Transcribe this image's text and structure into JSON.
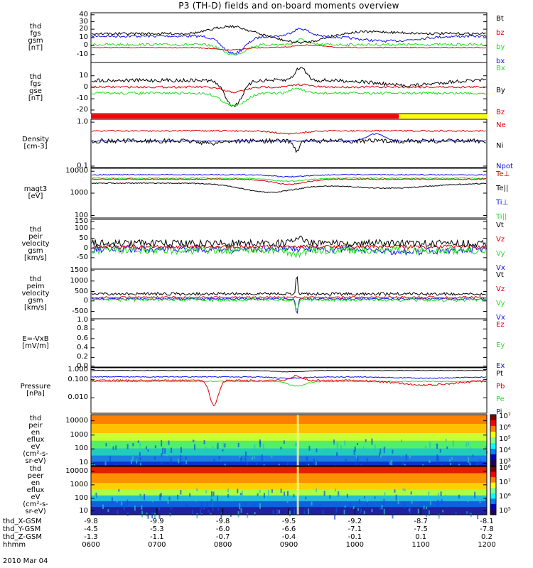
{
  "title": "P3 (TH-D) fields and on-board moments overview",
  "date": "2010 Mar 04",
  "colors": {
    "black": "#000000",
    "red": "#dd0000",
    "green": "#22dd22",
    "blue": "#1010ee",
    "yellow": "#ffff00"
  },
  "chart_data": [
    {
      "type": "line",
      "id": "fgs1",
      "ylabel": [
        "thd",
        "fgs",
        "gsm",
        "[nT]"
      ],
      "ylim": [
        -10,
        40
      ],
      "yticks": [
        "40",
        "30",
        "20",
        "10",
        "0",
        "-10"
      ],
      "legend": [
        {
          "name": "Bt",
          "color": "#000000"
        },
        {
          "name": "bz",
          "color": "#dd0000"
        },
        {
          "name": "by",
          "color": "#22dd22"
        },
        {
          "name": "bx",
          "color": "#1010ee"
        }
      ]
    },
    {
      "type": "line",
      "id": "fgs2",
      "ylabel": [
        "thd",
        "fgs",
        "gse",
        "[nT]"
      ],
      "ylim": [
        -25,
        18
      ],
      "yticks": [
        "10",
        "0",
        "-10",
        "-20"
      ],
      "legend": [
        {
          "name": "Bx",
          "color": "#22dd22"
        },
        {
          "name": "By",
          "color": "#000000"
        },
        {
          "name": "Bz",
          "color": "#dd0000"
        }
      ]
    },
    {
      "type": "bar",
      "id": "mode_bar",
      "segments": [
        {
          "from": "0600",
          "to": "1040",
          "color": "#ff0000"
        },
        {
          "from": "1040",
          "to": "1200",
          "color": "#ffff00"
        }
      ]
    },
    {
      "type": "line",
      "id": "density",
      "ylabel": [
        "Density",
        "[cm-3]"
      ],
      "scale": "log",
      "ylim": [
        0.1,
        1.0
      ],
      "yticks": [
        "1.0",
        "0.1"
      ],
      "legend": [
        {
          "name": "Ne",
          "color": "#dd0000"
        },
        {
          "name": "Ni",
          "color": "#000000"
        },
        {
          "name": "Npot",
          "color": "#1010ee"
        }
      ]
    },
    {
      "type": "line",
      "id": "temp",
      "ylabel": [
        "magt3",
        "[eV]"
      ],
      "scale": "log",
      "ylim": [
        100,
        10000
      ],
      "yticks": [
        "10000",
        "1000",
        "100"
      ],
      "legend": [
        {
          "name": "Te⊥",
          "color": "#dd0000"
        },
        {
          "name": "Te||",
          "color": "#000000"
        },
        {
          "name": "Ti⊥",
          "color": "#1010ee"
        },
        {
          "name": "Ti||",
          "color": "#22dd22"
        }
      ]
    },
    {
      "type": "line",
      "id": "peir_vel",
      "ylabel": [
        "thd",
        "peir",
        "velocity",
        "gsm",
        "[km/s]"
      ],
      "ylim": [
        -60,
        150
      ],
      "yticks": [
        "150",
        "100",
        "50",
        "0",
        "-50"
      ],
      "legend": [
        {
          "name": "Vt",
          "color": "#000000"
        },
        {
          "name": "Vz",
          "color": "#dd0000"
        },
        {
          "name": "Vy",
          "color": "#22dd22"
        },
        {
          "name": "Vx",
          "color": "#1010ee"
        }
      ]
    },
    {
      "type": "line",
      "id": "peim_vel",
      "ylabel": [
        "thd",
        "peim",
        "velocity",
        "gsm",
        "[km/s]"
      ],
      "ylim": [
        -800,
        1500
      ],
      "yticks": [
        "1500",
        "1000",
        "500",
        "0",
        "-500"
      ],
      "legend": [
        {
          "name": "Vt",
          "color": "#000000"
        },
        {
          "name": "Vz",
          "color": "#dd0000"
        },
        {
          "name": "Vy",
          "color": "#22dd22"
        },
        {
          "name": "Vx",
          "color": "#1010ee"
        }
      ]
    },
    {
      "type": "line",
      "id": "efield",
      "ylabel": [
        "E=-VxB",
        "[mV/m]"
      ],
      "ylim": [
        0,
        1.0
      ],
      "yticks": [
        "1.0",
        "0.8",
        "0.6",
        "0.4",
        "0.2",
        "0.0"
      ],
      "legend": [
        {
          "name": "Ez",
          "color": "#dd0000"
        },
        {
          "name": "Ey",
          "color": "#22dd22"
        },
        {
          "name": "Ex",
          "color": "#1010ee"
        }
      ]
    },
    {
      "type": "line",
      "id": "pressure",
      "ylabel": [
        "Pressure",
        "[nPa]"
      ],
      "scale": "log",
      "ylim": [
        0.005,
        1.0
      ],
      "yticks": [
        "1.000",
        "0.100",
        "0.010"
      ],
      "legend": [
        {
          "name": "Pt",
          "color": "#000000"
        },
        {
          "name": "Pb",
          "color": "#dd0000"
        },
        {
          "name": "Pe",
          "color": "#22dd22"
        },
        {
          "name": "Pi",
          "color": "#1010ee"
        }
      ]
    },
    {
      "type": "heatmap",
      "id": "peir_spec",
      "ylabel": [
        "thd",
        "peir",
        "en",
        "eflux",
        "eV",
        "(cm²-s-",
        "sr-eV)"
      ],
      "scale": "log",
      "ylim": [
        10,
        20000
      ],
      "yticks": [
        "10000",
        "1000",
        "100",
        "10"
      ],
      "colorbar": [
        "10⁷",
        "10⁶",
        "10⁵",
        "10⁴",
        "10³"
      ]
    },
    {
      "type": "heatmap",
      "id": "peer_spec",
      "ylabel": [
        "thd",
        "peer",
        "en",
        "eflux",
        "eV",
        "(cm²-s-",
        "sr-eV)"
      ],
      "scale": "log",
      "ylim": [
        10,
        20000
      ],
      "yticks": [
        "10000",
        "1000",
        "100",
        "10"
      ],
      "colorbar": [
        "10⁸",
        "10⁷",
        "10⁶",
        "10⁵"
      ]
    }
  ],
  "xaxis": {
    "rows": [
      {
        "label": "thd_X-GSM",
        "values": [
          "-9.8",
          "-9.9",
          "-9.8",
          "-9.5",
          "-9.2",
          "-8.7",
          "-8.1"
        ]
      },
      {
        "label": "thd_Y-GSM",
        "values": [
          "-4.5",
          "-5.3",
          "-6.0",
          "-6.6",
          "-7.1",
          "-7.5",
          "-7.8"
        ]
      },
      {
        "label": "thd_Z-GSM",
        "values": [
          "-1.3",
          "-1.1",
          "-0.7",
          "-0.4",
          "-0.1",
          "0.1",
          "0.2"
        ]
      },
      {
        "label": "hhmm",
        "values": [
          "0600",
          "0700",
          "0800",
          "0900",
          "1000",
          "1100",
          "1200"
        ]
      }
    ]
  }
}
